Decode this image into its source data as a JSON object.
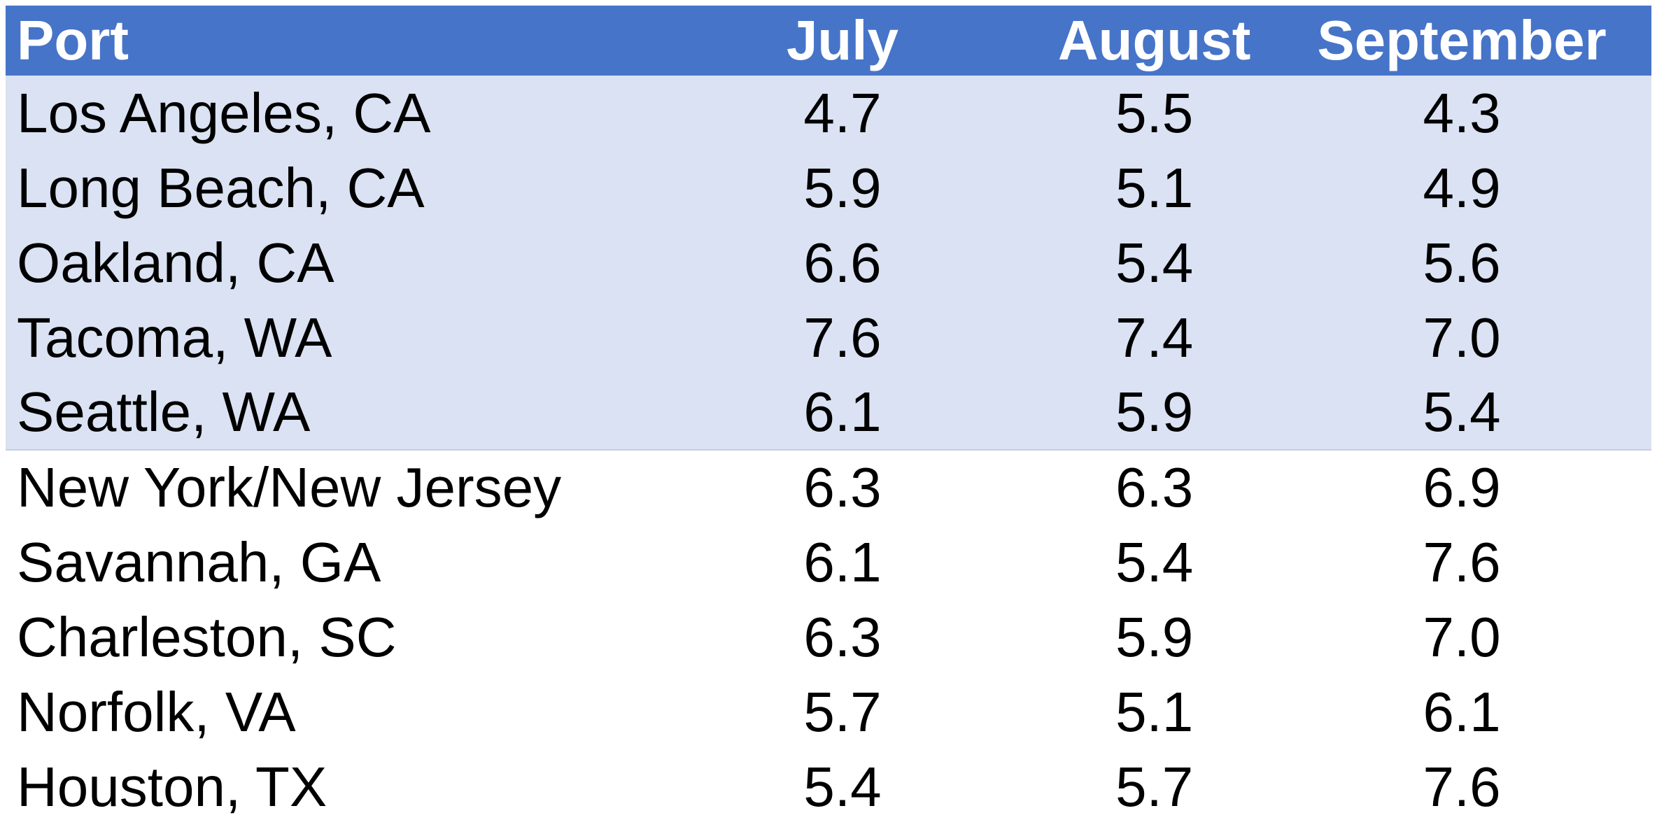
{
  "colors": {
    "header_bg": "#4674C8",
    "header_text": "#FFFFFF",
    "band_bg": "#DAE2F3",
    "band_divider": "#C6CEE3",
    "body_text": "#000000",
    "page_bg": "#FFFFFF"
  },
  "table": {
    "header": {
      "port": "Port",
      "months": [
        "July",
        "August",
        "September"
      ]
    },
    "rows": [
      {
        "port": "Los Angeles, CA",
        "values": [
          "4.7",
          "5.5",
          "4.3"
        ],
        "shaded": true
      },
      {
        "port": "Long Beach, CA",
        "values": [
          "5.9",
          "5.1",
          "4.9"
        ],
        "shaded": true
      },
      {
        "port": "Oakland, CA",
        "values": [
          "6.6",
          "5.4",
          "5.6"
        ],
        "shaded": true
      },
      {
        "port": "Tacoma, WA",
        "values": [
          "7.6",
          "7.4",
          "7.0"
        ],
        "shaded": true
      },
      {
        "port": "Seattle, WA",
        "values": [
          "6.1",
          "5.9",
          "5.4"
        ],
        "shaded": true
      },
      {
        "port": "New York/New Jersey",
        "values": [
          "6.3",
          "6.3",
          "6.9"
        ],
        "shaded": false
      },
      {
        "port": "Savannah, GA",
        "values": [
          "6.1",
          "5.4",
          "7.6"
        ],
        "shaded": false
      },
      {
        "port": "Charleston, SC",
        "values": [
          "6.3",
          "5.9",
          "7.0"
        ],
        "shaded": false
      },
      {
        "port": "Norfolk, VA",
        "values": [
          "5.7",
          "5.1",
          "6.1"
        ],
        "shaded": false
      },
      {
        "port": "Houston, TX",
        "values": [
          "5.4",
          "5.7",
          "7.6"
        ],
        "shaded": false
      }
    ]
  },
  "chart_data": {
    "type": "table",
    "columns": [
      "Port",
      "July",
      "August",
      "September"
    ],
    "categories": [
      "Los Angeles, CA",
      "Long Beach, CA",
      "Oakland, CA",
      "Tacoma, WA",
      "Seattle, WA",
      "New York/New Jersey",
      "Savannah, GA",
      "Charleston, SC",
      "Norfolk, VA",
      "Houston, TX"
    ],
    "series": [
      {
        "name": "July",
        "values": [
          4.7,
          5.9,
          6.6,
          7.6,
          6.1,
          6.3,
          6.1,
          6.3,
          5.7,
          5.4
        ]
      },
      {
        "name": "August",
        "values": [
          5.5,
          5.1,
          5.4,
          7.4,
          5.9,
          6.3,
          5.4,
          5.9,
          5.1,
          5.7
        ]
      },
      {
        "name": "September",
        "values": [
          4.3,
          4.9,
          5.6,
          7.0,
          5.4,
          6.9,
          7.6,
          7.0,
          6.1,
          7.6
        ]
      }
    ],
    "layout_hints": {
      "header_fill": "#4674C8",
      "banded_rows_fill": "#DAE2F3",
      "banded_rows_span": "first 5 data rows",
      "grid": false
    }
  }
}
